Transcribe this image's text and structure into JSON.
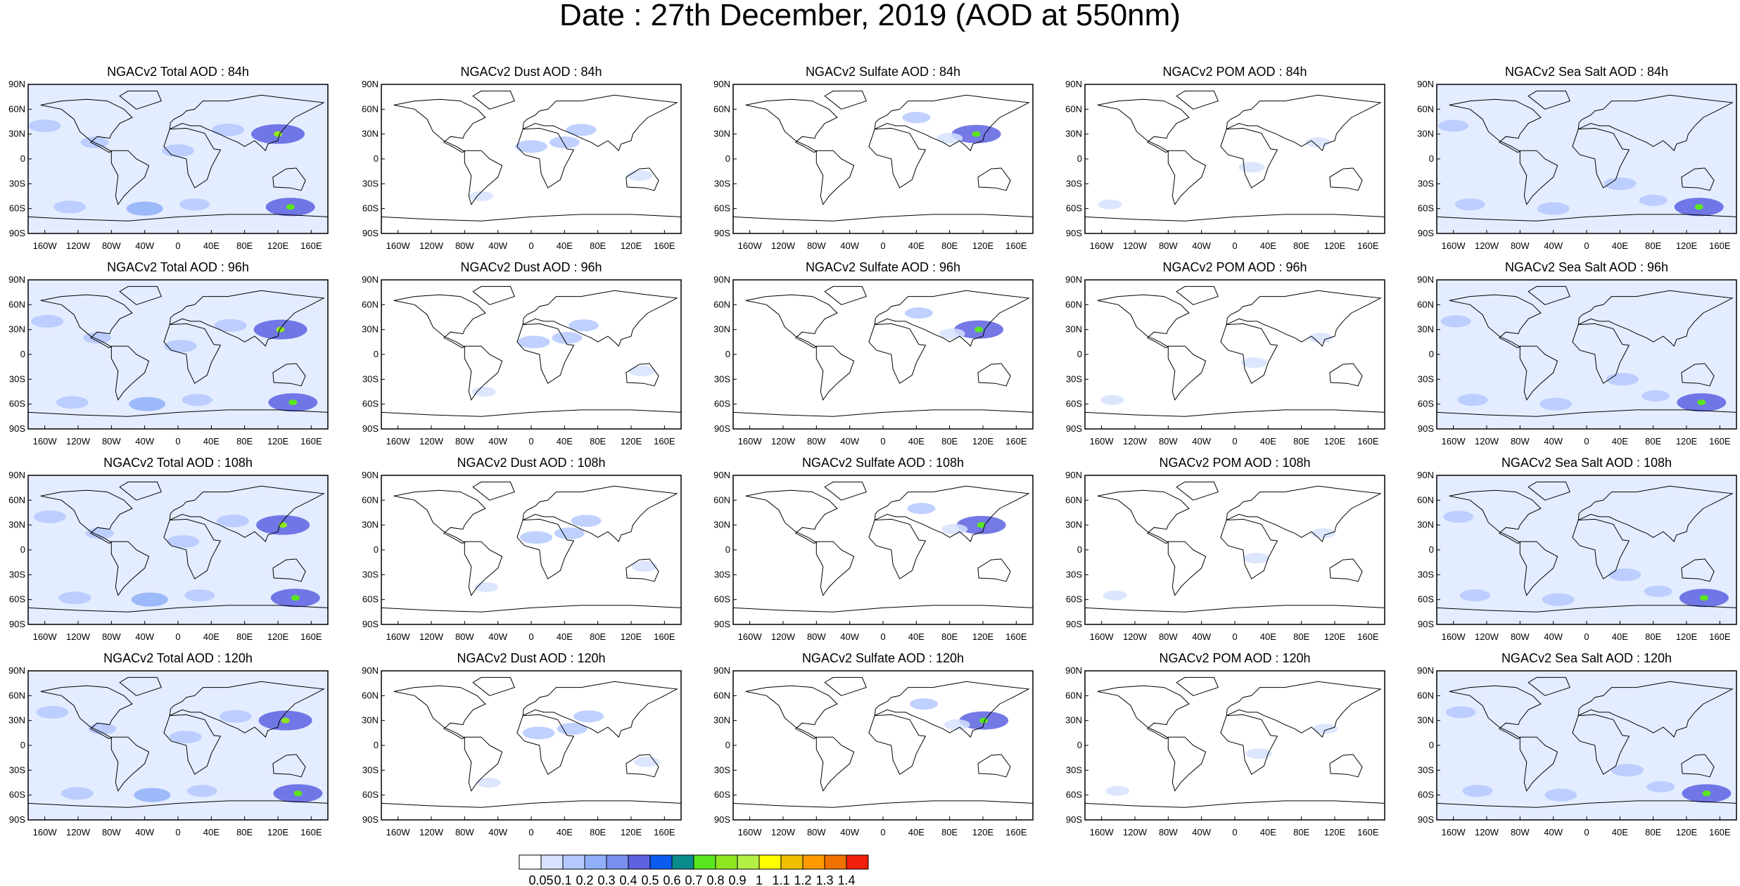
{
  "title": "Date : 27th December, 2019 (AOD at 550nm)",
  "panels": [
    {
      "title": "NGACv2 Total AOD : 84h",
      "species": "total",
      "lead": 84
    },
    {
      "title": "NGACv2 Dust AOD : 84h",
      "species": "dust",
      "lead": 84
    },
    {
      "title": "NGACv2 Sulfate AOD : 84h",
      "species": "sulfate",
      "lead": 84
    },
    {
      "title": "NGACv2 POM AOD : 84h",
      "species": "pom",
      "lead": 84
    },
    {
      "title": "NGACv2 Sea Salt AOD : 84h",
      "species": "seasalt",
      "lead": 84
    },
    {
      "title": "NGACv2 Total AOD : 96h",
      "species": "total",
      "lead": 96
    },
    {
      "title": "NGACv2 Dust AOD : 96h",
      "species": "dust",
      "lead": 96
    },
    {
      "title": "NGACv2 Sulfate AOD : 96h",
      "species": "sulfate",
      "lead": 96
    },
    {
      "title": "NGACv2 POM AOD : 96h",
      "species": "pom",
      "lead": 96
    },
    {
      "title": "NGACv2 Sea Salt AOD : 96h",
      "species": "seasalt",
      "lead": 96
    },
    {
      "title": "NGACv2 Total AOD : 108h",
      "species": "total",
      "lead": 108
    },
    {
      "title": "NGACv2 Dust AOD : 108h",
      "species": "dust",
      "lead": 108
    },
    {
      "title": "NGACv2 Sulfate AOD : 108h",
      "species": "sulfate",
      "lead": 108
    },
    {
      "title": "NGACv2 POM AOD : 108h",
      "species": "pom",
      "lead": 108
    },
    {
      "title": "NGACv2 Sea Salt AOD : 108h",
      "species": "seasalt",
      "lead": 108
    },
    {
      "title": "NGACv2 Total AOD : 120h",
      "species": "total",
      "lead": 120
    },
    {
      "title": "NGACv2 Dust AOD : 120h",
      "species": "dust",
      "lead": 120
    },
    {
      "title": "NGACv2 Sulfate AOD : 120h",
      "species": "sulfate",
      "lead": 120
    },
    {
      "title": "NGACv2 POM AOD : 120h",
      "species": "pom",
      "lead": 120
    },
    {
      "title": "NGACv2 Sea Salt  AOD : 120h",
      "species": "seasalt",
      "lead": 120
    }
  ],
  "lat_ticks": [
    "90N",
    "60N",
    "30N",
    "0",
    "30S",
    "60S",
    "90S"
  ],
  "lon_ticks": [
    "160W",
    "120W",
    "80W",
    "40W",
    "0",
    "40E",
    "80E",
    "120E",
    "160E"
  ],
  "lat_values": [
    90,
    60,
    30,
    0,
    -30,
    -60,
    -90
  ],
  "lon_values": [
    -160,
    -120,
    -80,
    -40,
    0,
    40,
    80,
    120,
    160
  ],
  "colorbar": {
    "labels": [
      "0.05",
      "0.1",
      "0.2",
      "0.3",
      "0.4",
      "0.5",
      "0.6",
      "0.7",
      "0.8",
      "0.9",
      "1",
      "1.1",
      "1.2",
      "1.3",
      "1.4"
    ],
    "colors": [
      "#ffffff",
      "#d6e2ff",
      "#b5c9ff",
      "#8fb0f8",
      "#7a8ef0",
      "#5c62e0",
      "#0a5cf0",
      "#0a8c8c",
      "#5ae61e",
      "#8ee61e",
      "#b4ef46",
      "#ffff00",
      "#f0c000",
      "#ff9b00",
      "#f07000",
      "#f01e0a"
    ]
  },
  "plumes": {
    "total": [
      {
        "lon": -130,
        "lat": -58,
        "v": 0.3
      },
      {
        "lon": -40,
        "lat": -60,
        "v": 0.4
      },
      {
        "lon": 20,
        "lat": -55,
        "v": 0.25
      },
      {
        "lon": 120,
        "lat": 30,
        "v": 0.8
      },
      {
        "lon": 135,
        "lat": -58,
        "v": 0.7
      },
      {
        "lon": 0,
        "lat": 10,
        "v": 0.3
      },
      {
        "lon": 60,
        "lat": 35,
        "v": 0.3
      },
      {
        "lon": -160,
        "lat": 40,
        "v": 0.3
      },
      {
        "lon": -100,
        "lat": 20,
        "v": 0.2
      }
    ],
    "dust": [
      {
        "lon": 0,
        "lat": 15,
        "v": 0.3
      },
      {
        "lon": 40,
        "lat": 20,
        "v": 0.25
      },
      {
        "lon": 60,
        "lat": 35,
        "v": 0.25
      },
      {
        "lon": 130,
        "lat": -20,
        "v": 0.15
      },
      {
        "lon": -60,
        "lat": -45,
        "v": 0.1
      }
    ],
    "sulfate": [
      {
        "lon": 112,
        "lat": 30,
        "v": 0.7
      },
      {
        "lon": 40,
        "lat": 50,
        "v": 0.2
      },
      {
        "lon": 80,
        "lat": 25,
        "v": 0.15
      }
    ],
    "pom": [
      {
        "lon": 20,
        "lat": -10,
        "v": 0.15
      },
      {
        "lon": 100,
        "lat": 20,
        "v": 0.12
      },
      {
        "lon": -150,
        "lat": -55,
        "v": 0.1
      }
    ],
    "seasalt": [
      {
        "lon": -140,
        "lat": -55,
        "v": 0.25
      },
      {
        "lon": -40,
        "lat": -60,
        "v": 0.3
      },
      {
        "lon": 135,
        "lat": -58,
        "v": 0.7
      },
      {
        "lon": -160,
        "lat": 40,
        "v": 0.25
      },
      {
        "lon": 40,
        "lat": -30,
        "v": 0.3
      },
      {
        "lon": 80,
        "lat": -50,
        "v": 0.2
      }
    ]
  }
}
